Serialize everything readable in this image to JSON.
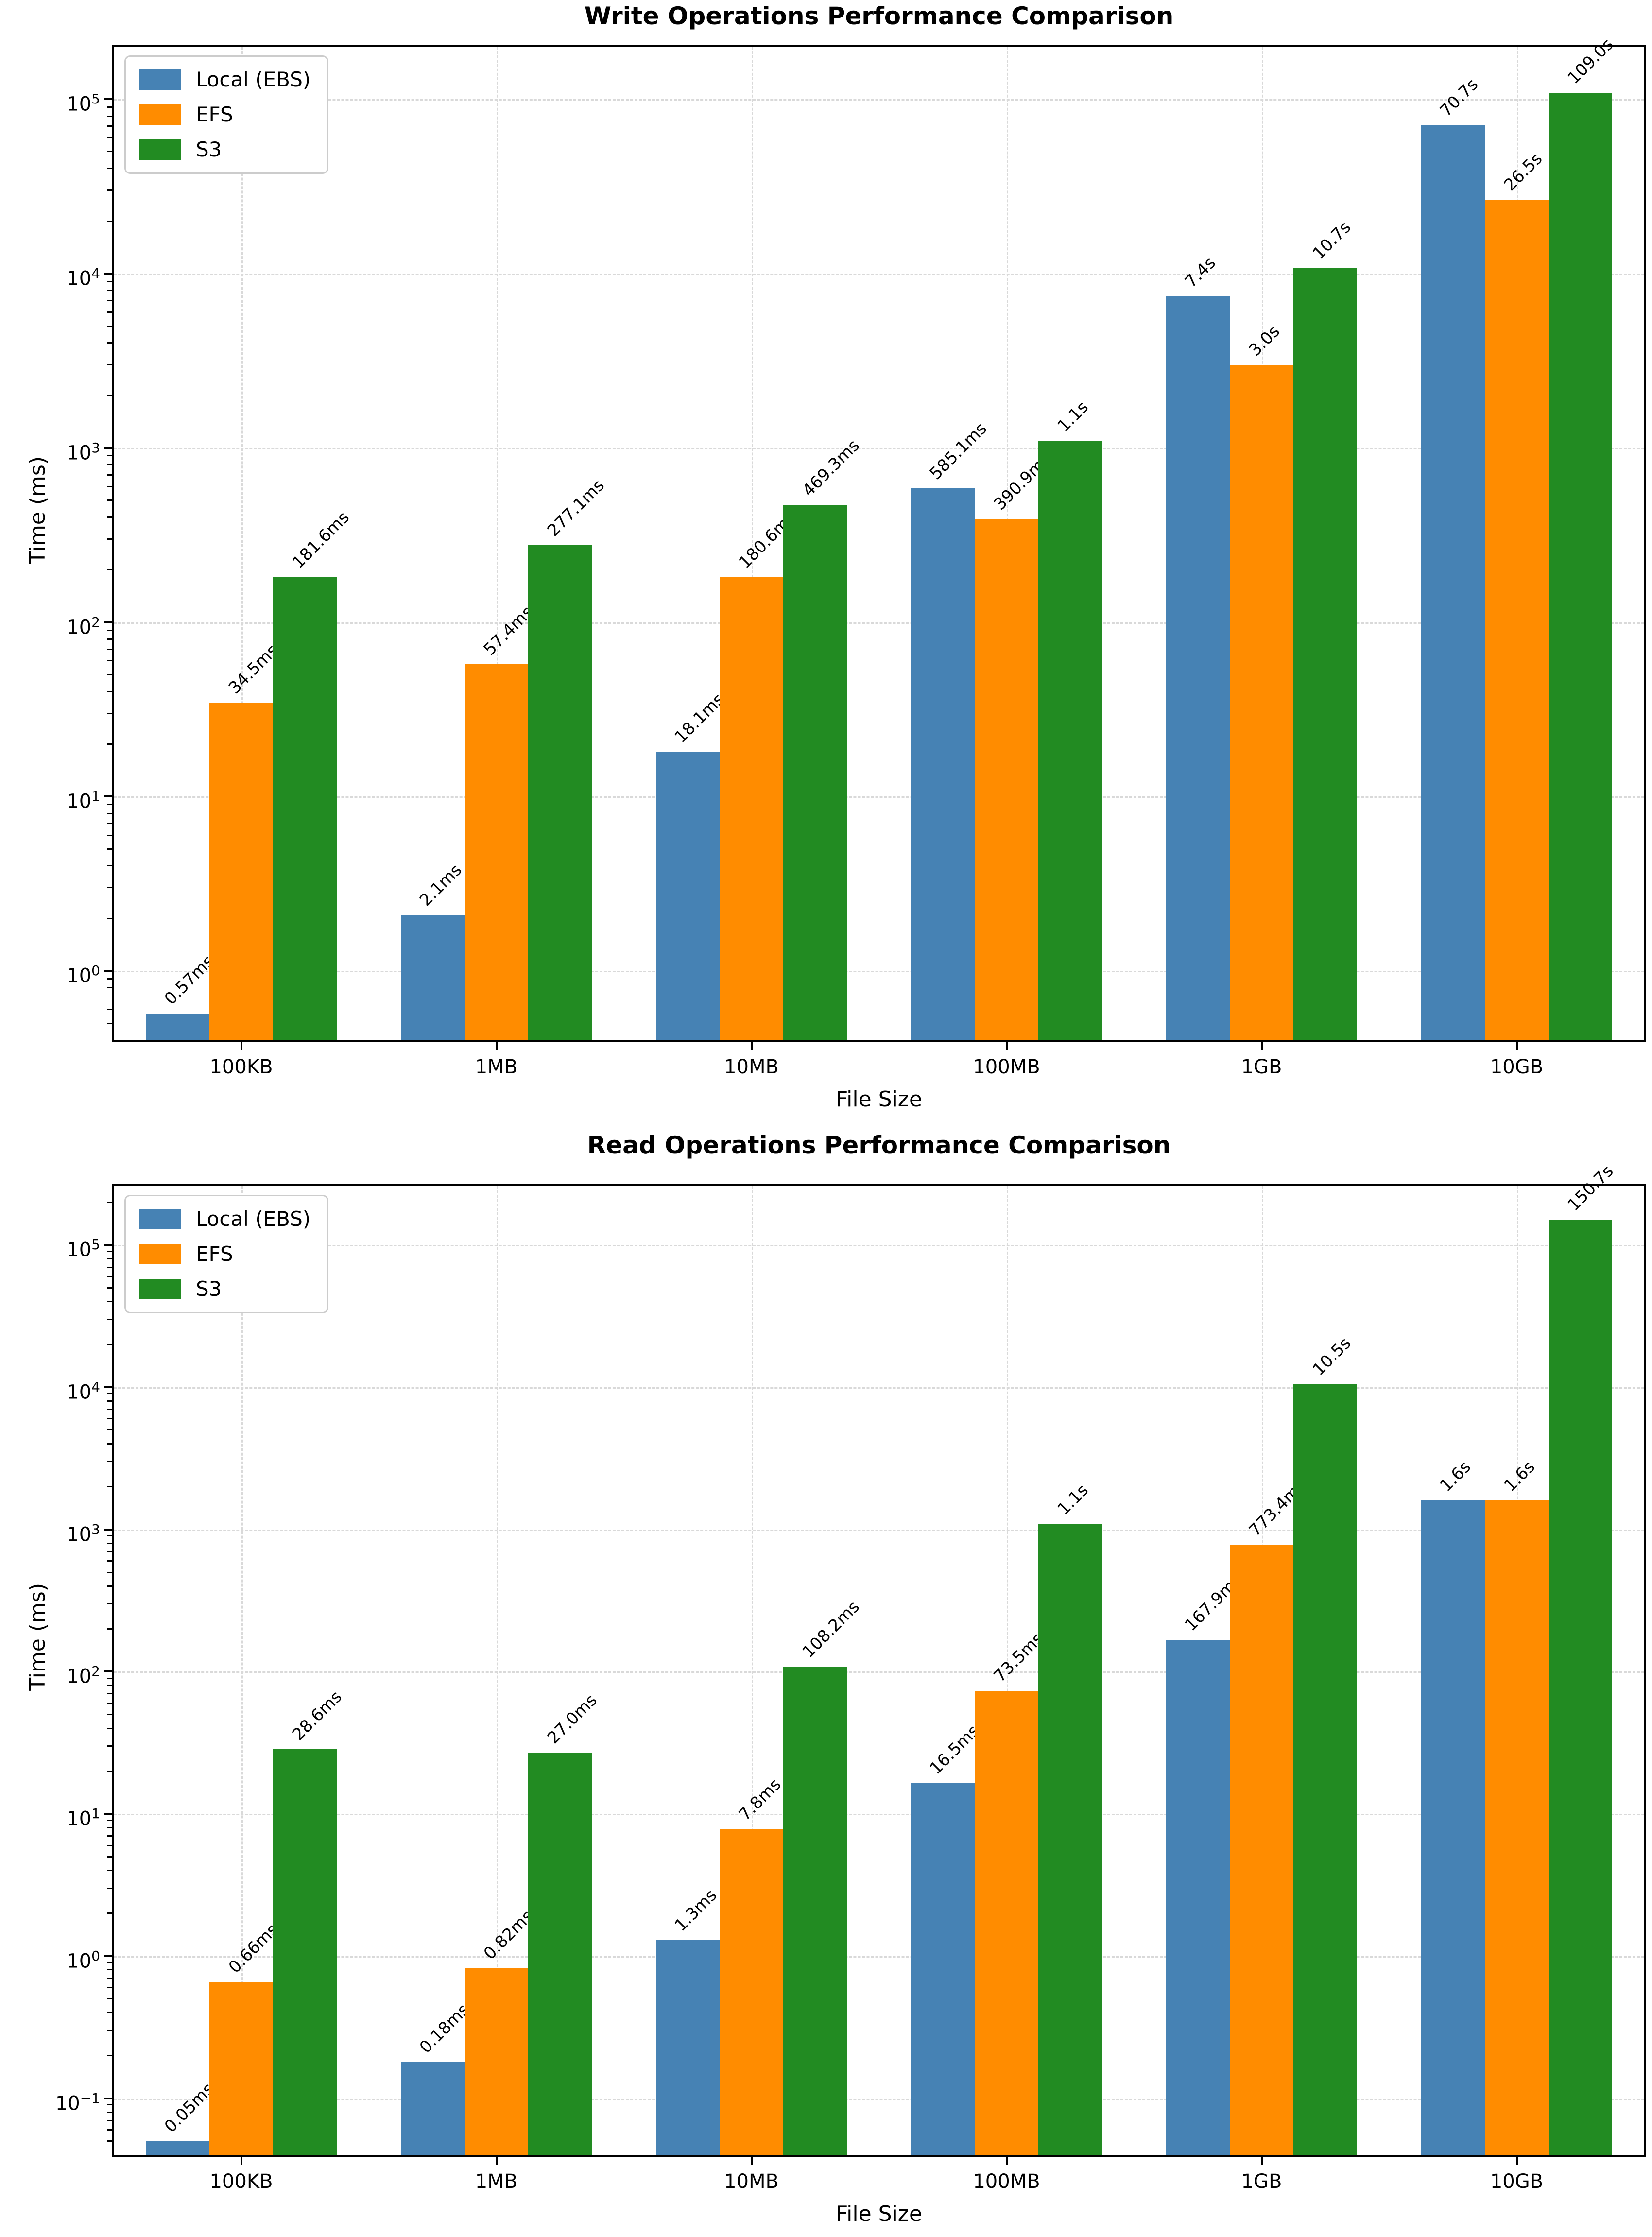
{
  "figure_background": "#ffffff",
  "chart_data": [
    {
      "type": "bar",
      "title": "Write Operations Performance Comparison",
      "xlabel": "File Size",
      "ylabel": "Time (ms)",
      "yscale": "log",
      "ylim": [
        0.4,
        200000
      ],
      "ytick_exponents": [
        0,
        1,
        2,
        3,
        4,
        5
      ],
      "grid": true,
      "legend_position": "upper left",
      "categories": [
        "100KB",
        "1MB",
        "10MB",
        "100MB",
        "1GB",
        "10GB"
      ],
      "series": [
        {
          "name": "Local (EBS)",
          "color": "#4682B4",
          "values": [
            0.57,
            2.1,
            18.1,
            585.1,
            7400,
            70700
          ],
          "labels": [
            "0.57ms",
            "2.1ms",
            "18.1ms",
            "585.1ms",
            "7.4s",
            "70.7s"
          ]
        },
        {
          "name": "EFS",
          "color": "#FF8C00",
          "values": [
            34.5,
            57.4,
            180.6,
            390.9,
            3000,
            26500
          ],
          "labels": [
            "34.5ms",
            "57.4ms",
            "180.6ms",
            "390.9ms",
            "3.0s",
            "26.5s"
          ]
        },
        {
          "name": "S3",
          "color": "#228B22",
          "values": [
            181.6,
            277.1,
            469.3,
            1100,
            10700,
            109000
          ],
          "labels": [
            "181.6ms",
            "277.1ms",
            "469.3ms",
            "1.1s",
            "10.7s",
            "109.0s"
          ]
        }
      ]
    },
    {
      "type": "bar",
      "title": "Read Operations Performance Comparison",
      "xlabel": "File Size",
      "ylabel": "Time (ms)",
      "yscale": "log",
      "ylim": [
        0.04,
        260000
      ],
      "ytick_exponents": [
        -1,
        0,
        1,
        2,
        3,
        4,
        5
      ],
      "grid": true,
      "legend_position": "upper left",
      "categories": [
        "100KB",
        "1MB",
        "10MB",
        "100MB",
        "1GB",
        "10GB"
      ],
      "series": [
        {
          "name": "Local (EBS)",
          "color": "#4682B4",
          "values": [
            0.05,
            0.18,
            1.3,
            16.5,
            167.9,
            1600
          ],
          "labels": [
            "0.05ms",
            "0.18ms",
            "1.3ms",
            "16.5ms",
            "167.9ms",
            "1.6s"
          ]
        },
        {
          "name": "EFS",
          "color": "#FF8C00",
          "values": [
            0.66,
            0.82,
            7.8,
            73.5,
            773.4,
            1600
          ],
          "labels": [
            "0.66ms",
            "0.82ms",
            "7.8ms",
            "73.5ms",
            "773.4ms",
            "1.6s"
          ]
        },
        {
          "name": "S3",
          "color": "#228B22",
          "values": [
            28.6,
            27.0,
            108.2,
            1100,
            10500,
            150700
          ],
          "labels": [
            "28.6ms",
            "27.0ms",
            "108.2ms",
            "1.1s",
            "10.5s",
            "150.7s"
          ]
        }
      ]
    }
  ]
}
